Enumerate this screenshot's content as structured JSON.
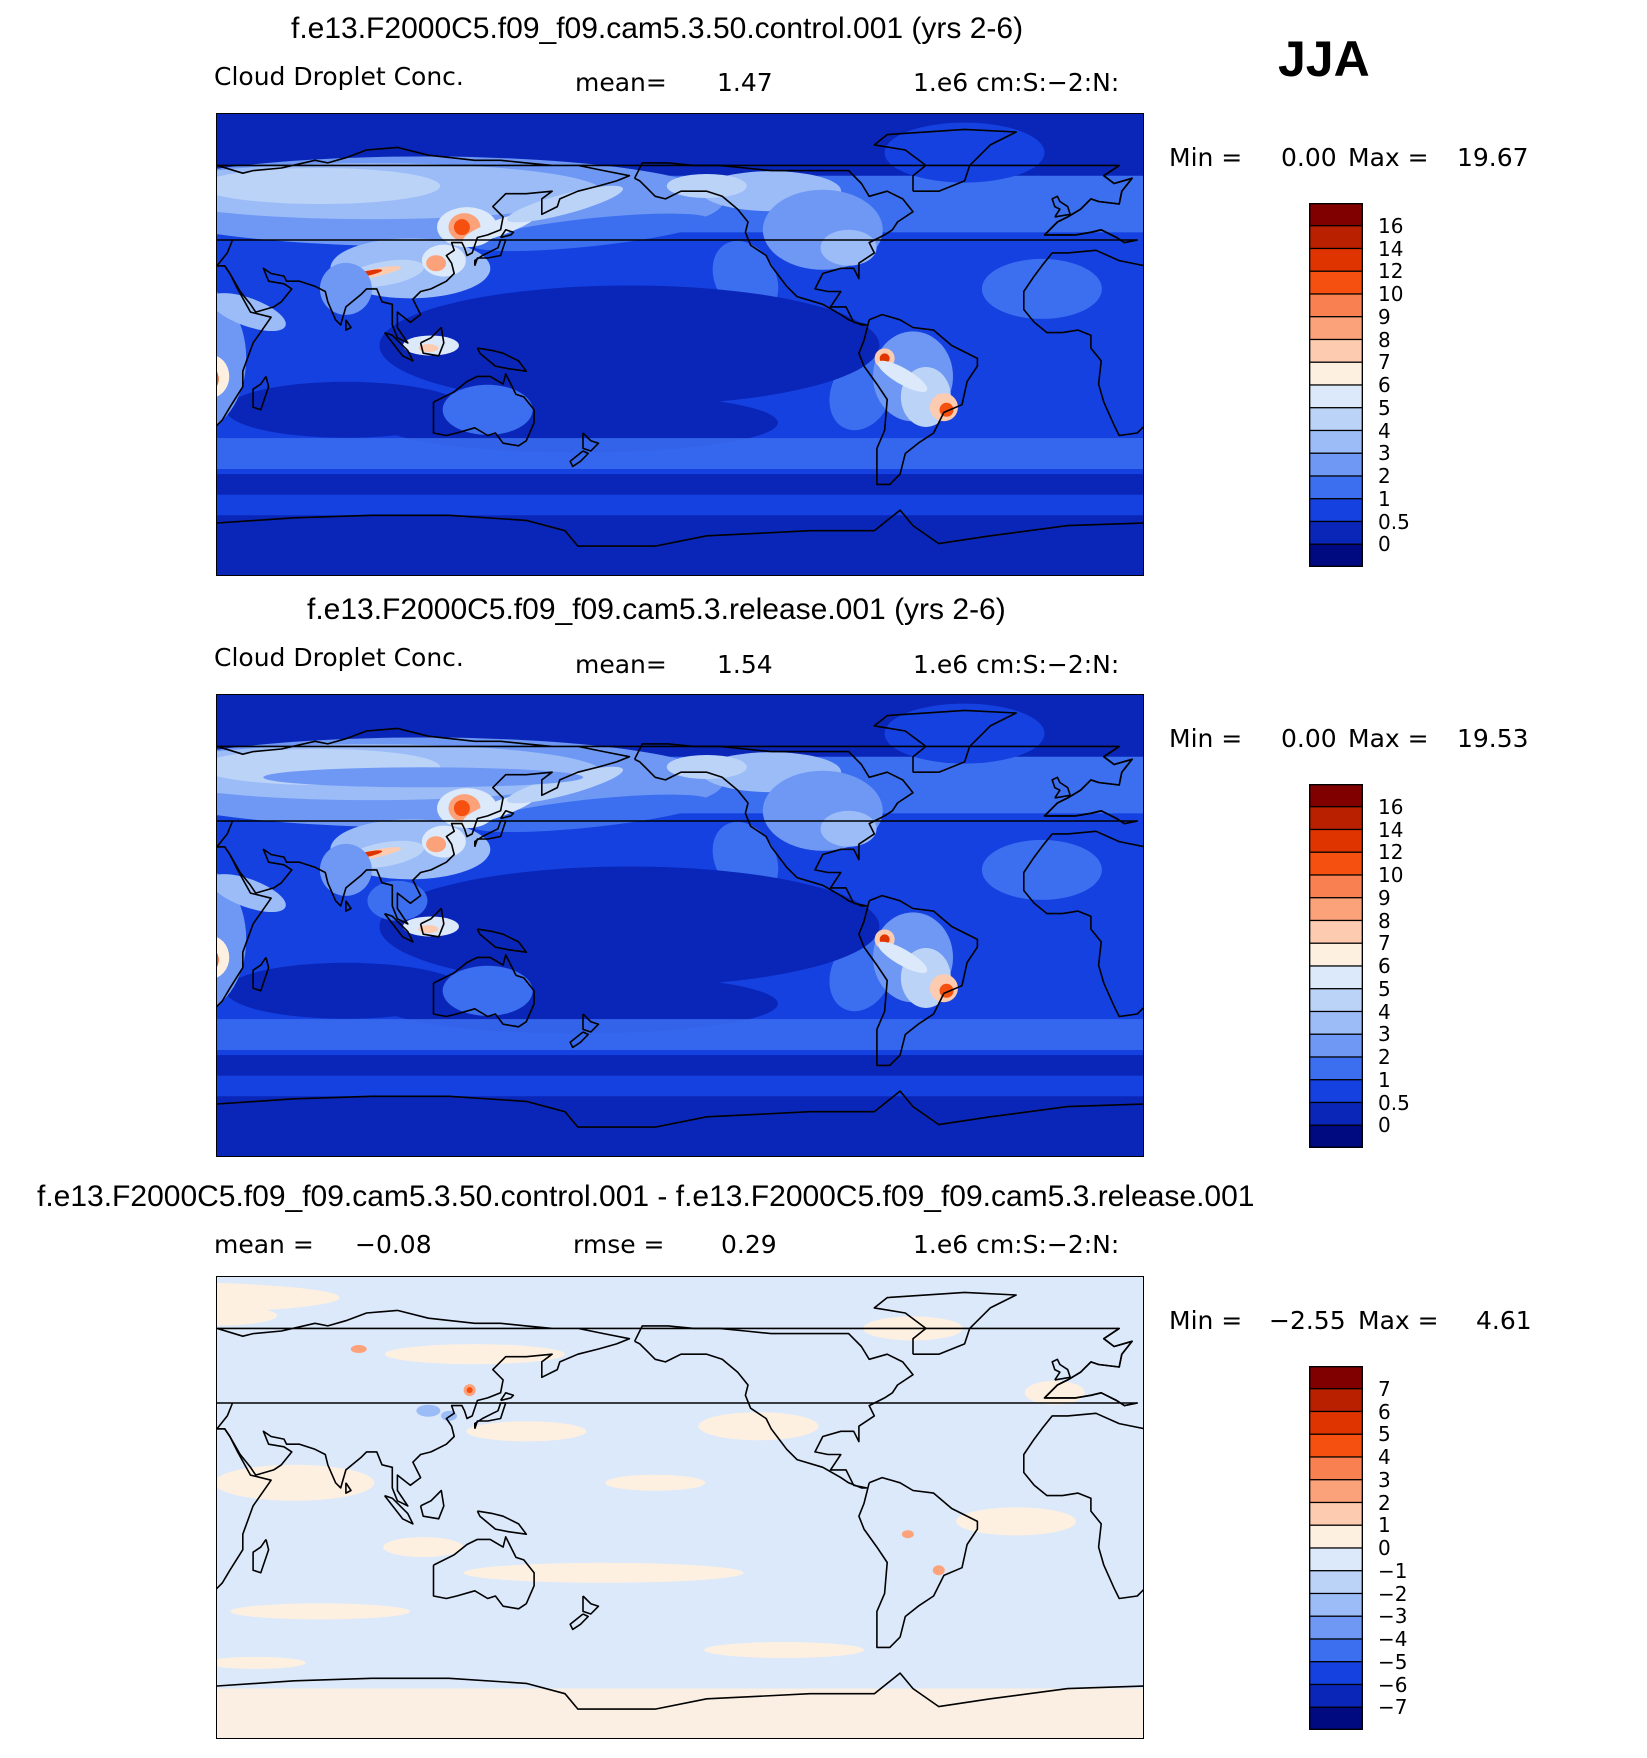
{
  "season": "JJA",
  "panels": [
    {
      "title": "f.e13.F2000C5.f09_f09.cam5.3.50.control.001 (yrs 2-6)",
      "variable": "Cloud Droplet Conc.",
      "stat1_label": "mean=",
      "stat1_value": "1.47",
      "stat2_label": "",
      "stat2_value": "",
      "units": "1.e6 cm:S:−2:N:",
      "min_label": "Min =",
      "min_value": "0.00",
      "max_label": "Max =",
      "max_value": "19.67"
    },
    {
      "title": "f.e13.F2000C5.f09_f09.cam5.3.release.001 (yrs 2-6)",
      "variable": "Cloud Droplet Conc.",
      "stat1_label": "mean=",
      "stat1_value": "1.54",
      "stat2_label": "",
      "stat2_value": "",
      "units": "1.e6 cm:S:−2:N:",
      "min_label": "Min =",
      "min_value": "0.00",
      "max_label": "Max =",
      "max_value": "19.53"
    },
    {
      "title": "f.e13.F2000C5.f09_f09.cam5.3.50.control.001 - f.e13.F2000C5.f09_f09.cam5.3.release.001",
      "variable": "",
      "stat1_label": "mean =",
      "stat1_value": "−0.08",
      "stat2_label": "rmse =",
      "stat2_value": "0.29",
      "units": "1.e6 cm:S:−2:N:",
      "min_label": "Min =",
      "min_value": "−2.55",
      "max_label": "Max =",
      "max_value": "4.61"
    }
  ],
  "colorbars": {
    "field": {
      "labels": [
        "16",
        "14",
        "12",
        "10",
        "9",
        "8",
        "7",
        "6",
        "5",
        "4",
        "3",
        "2",
        "1",
        "0.5",
        "0"
      ],
      "colors": [
        "#800000",
        "#b82000",
        "#e03400",
        "#f55010",
        "#f98050",
        "#fca27a",
        "#fdcbb0",
        "#fef0e0",
        "#dce9fb",
        "#bcd3f8",
        "#9bbcf7",
        "#6e98f4",
        "#3b6ff0",
        "#1541e0",
        "#0a26b8",
        "#000a80"
      ]
    },
    "diff": {
      "labels": [
        "7",
        "6",
        "5",
        "4",
        "3",
        "2",
        "1",
        "0",
        "−1",
        "−2",
        "−3",
        "−4",
        "−5",
        "−6",
        "−7"
      ],
      "colors": [
        "#800000",
        "#b82000",
        "#e03400",
        "#f55010",
        "#f98050",
        "#fca27a",
        "#fdcbb0",
        "#fef0e0",
        "#dce9fb",
        "#bcd3f8",
        "#9bbcf7",
        "#6e98f4",
        "#3b6ff0",
        "#1541e0",
        "#0a26b8",
        "#000a80"
      ]
    }
  },
  "chart_data": [
    {
      "type": "heatmap",
      "title": "f.e13.F2000C5.f09_f09.cam5.3.50.control.001 (yrs 2-6)",
      "projection": "cylindrical-equidistant, Pacific centered",
      "x_range": [
        30,
        390
      ],
      "y_range": [
        -90,
        90
      ],
      "value_range": [
        0.0,
        19.67
      ],
      "mean": 1.47,
      "levels": [
        0,
        0.5,
        1,
        2,
        3,
        4,
        5,
        6,
        7,
        8,
        9,
        10,
        12,
        14,
        16
      ]
    },
    {
      "type": "heatmap",
      "title": "f.e13.F2000C5.f09_f09.cam5.3.release.001 (yrs 2-6)",
      "projection": "cylindrical-equidistant, Pacific centered",
      "x_range": [
        30,
        390
      ],
      "y_range": [
        -90,
        90
      ],
      "value_range": [
        0.0,
        19.53
      ],
      "mean": 1.54,
      "levels": [
        0,
        0.5,
        1,
        2,
        3,
        4,
        5,
        6,
        7,
        8,
        9,
        10,
        12,
        14,
        16
      ]
    },
    {
      "type": "heatmap",
      "title": "f.e13.F2000C5.f09_f09.cam5.3.50.control.001 - f.e13.F2000C5.f09_f09.cam5.3.release.001",
      "projection": "cylindrical-equidistant, Pacific centered",
      "x_range": [
        30,
        390
      ],
      "y_range": [
        -90,
        90
      ],
      "value_range": [
        -2.55,
        4.61
      ],
      "mean": -0.08,
      "rmse": 0.29,
      "levels": [
        -7,
        -6,
        -5,
        -4,
        -3,
        -2,
        -1,
        0,
        1,
        2,
        3,
        4,
        5,
        6,
        7
      ]
    }
  ]
}
